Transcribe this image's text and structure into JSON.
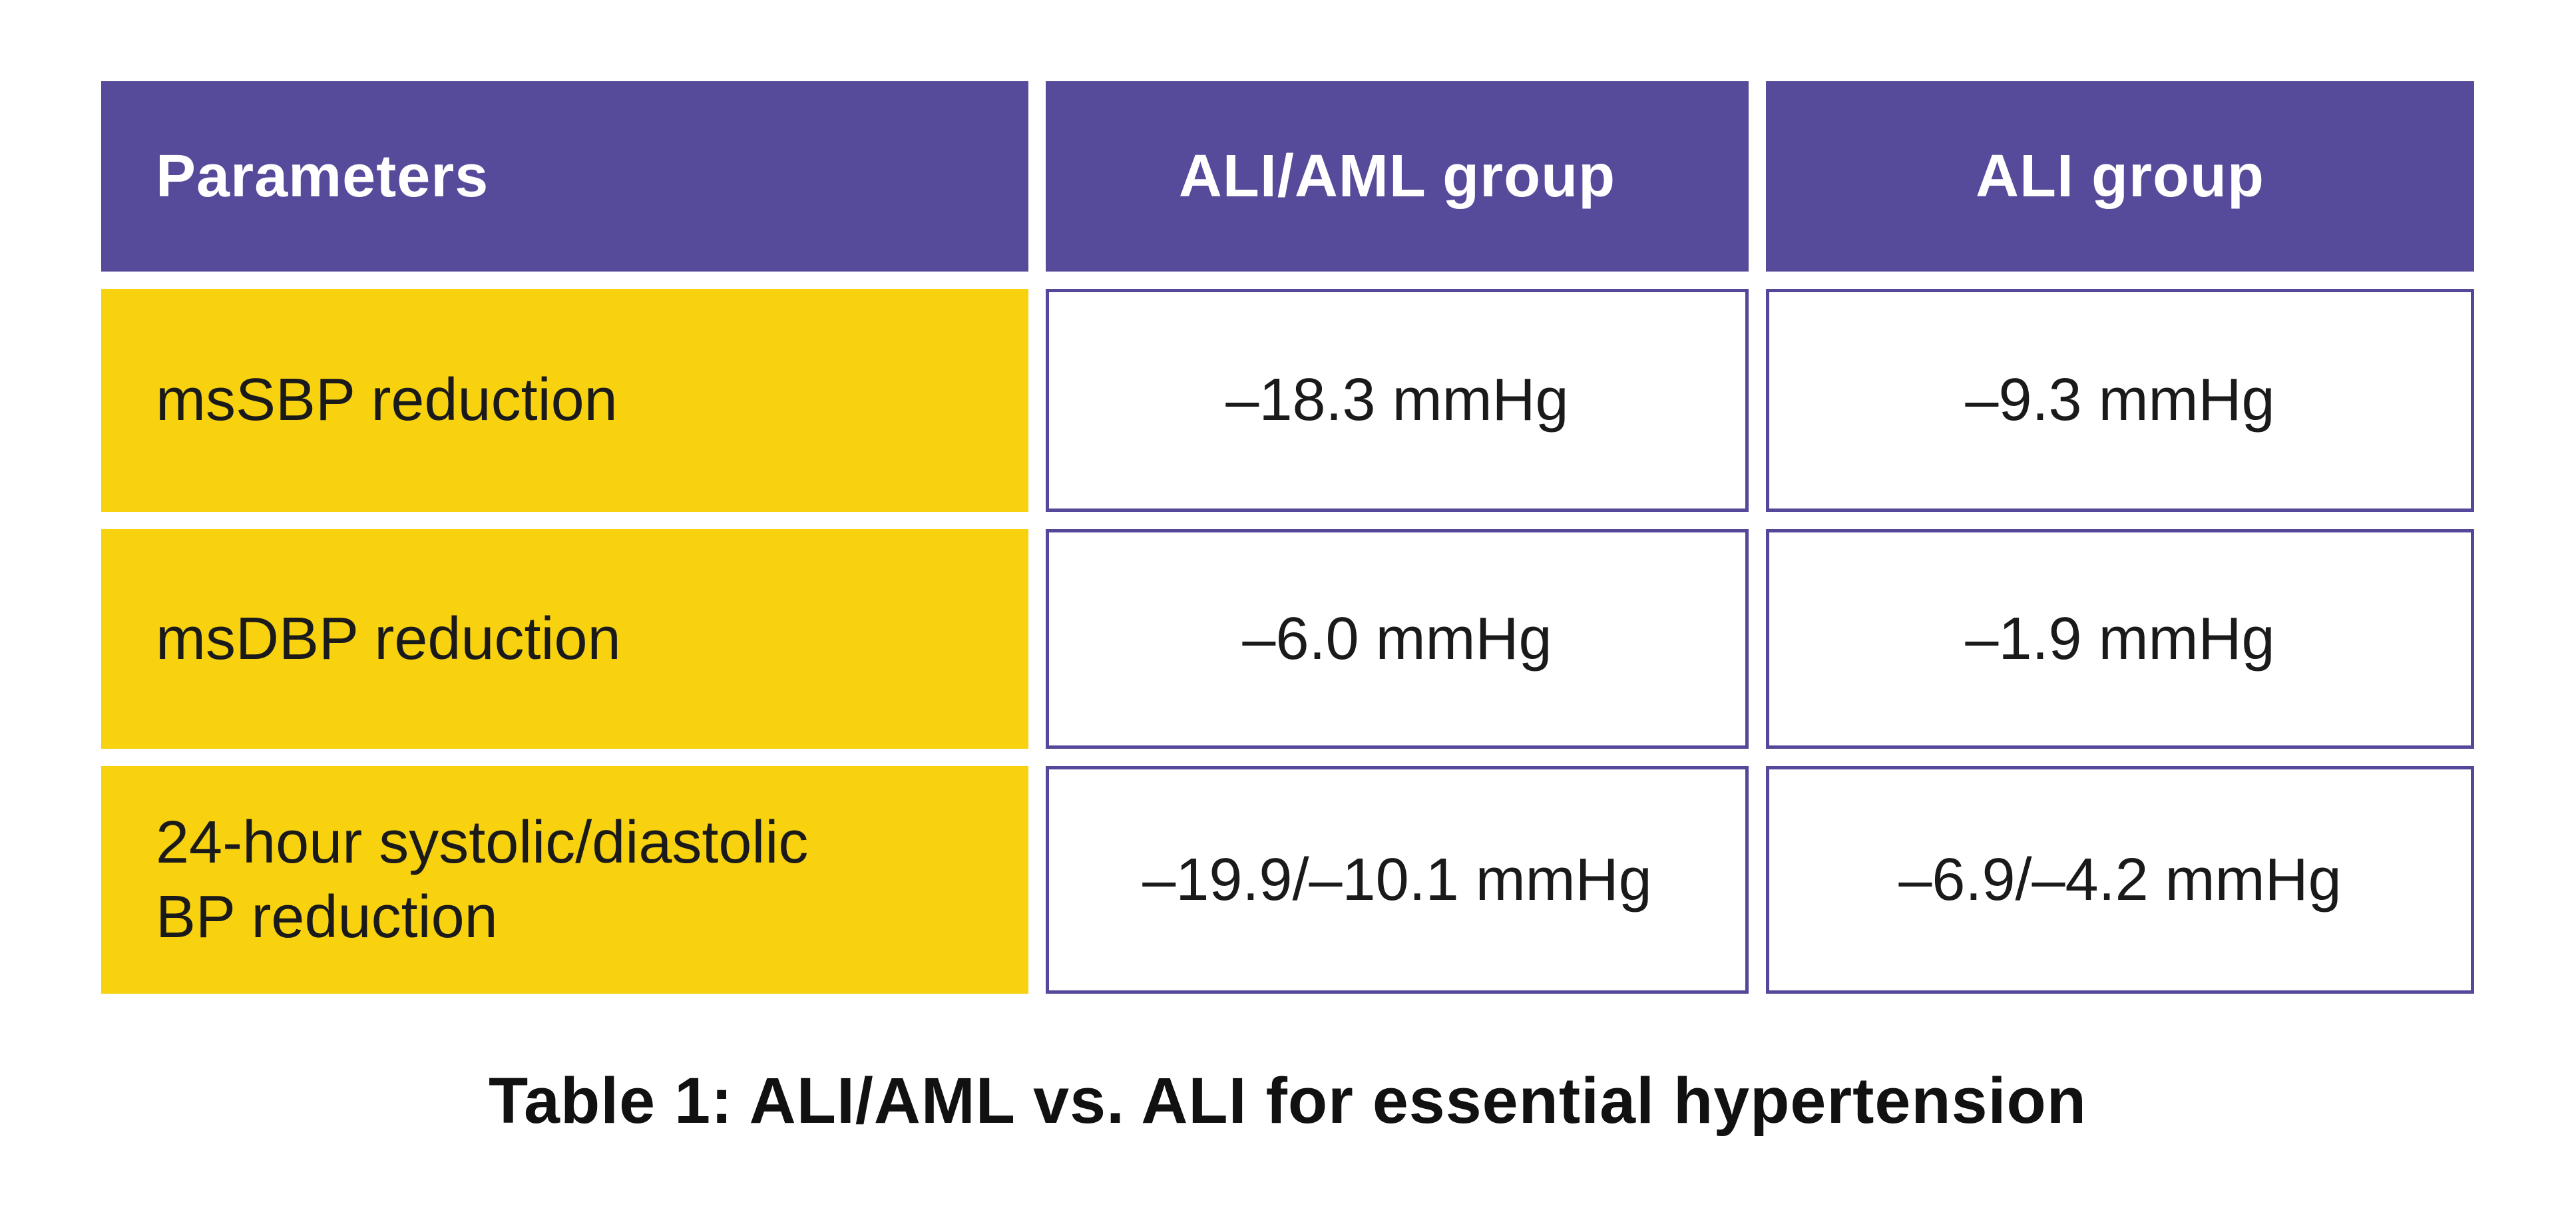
{
  "figure": {
    "caption": "Table 1: ALI/AML vs. ALI for essential hypertension"
  },
  "table": {
    "columns": [
      "Parameters",
      "ALI/AML group",
      "ALI group"
    ],
    "rows": [
      {
        "parameter": "msSBP reduction",
        "ali_aml_group": "–18.3 mmHg",
        "ali_group": "–9.3 mmHg"
      },
      {
        "parameter": "msDBP reduction",
        "ali_aml_group": "–6.0 mmHg",
        "ali_group": "–1.9 mmHg"
      },
      {
        "parameter": "24-hour systolic/diastolic\nBP reduction",
        "ali_aml_group": "–19.9/–10.1 mmHg",
        "ali_group": "–6.9/–4.2 mmHg"
      }
    ]
  },
  "chart_data": {
    "type": "table",
    "title": "Table 1: ALI/AML vs. ALI for essential hypertension",
    "columns": [
      "Parameters",
      "ALI/AML group",
      "ALI group"
    ],
    "rows": [
      [
        "msSBP reduction",
        "–18.3 mmHg",
        "–9.3 mmHg"
      ],
      [
        "msDBP reduction",
        "–6.0 mmHg",
        "–1.9 mmHg"
      ],
      [
        "24-hour systolic/diastolic BP reduction",
        "–19.9/–10.1 mmHg",
        "–6.9/–4.2 mmHg"
      ]
    ],
    "values_numeric_mmHg": {
      "msSBP_reduction": {
        "ALI_AML": -18.3,
        "ALI": -9.3
      },
      "msDBP_reduction": {
        "ALI_AML": -6.0,
        "ALI": -1.9
      },
      "24h_systolic_diastolic_BP_reduction": {
        "ALI_AML": [
          -19.9,
          -10.1
        ],
        "ALI": [
          -6.9,
          -4.2
        ]
      }
    }
  },
  "colors": {
    "header_bg": "#564A9B",
    "label_bg": "#F8D20F",
    "value_border": "#53489A",
    "header_text": "#FFFFFF",
    "body_text": "#1A1A1A",
    "caption_text": "#111111",
    "canvas_bg": "#FFFFFF"
  }
}
